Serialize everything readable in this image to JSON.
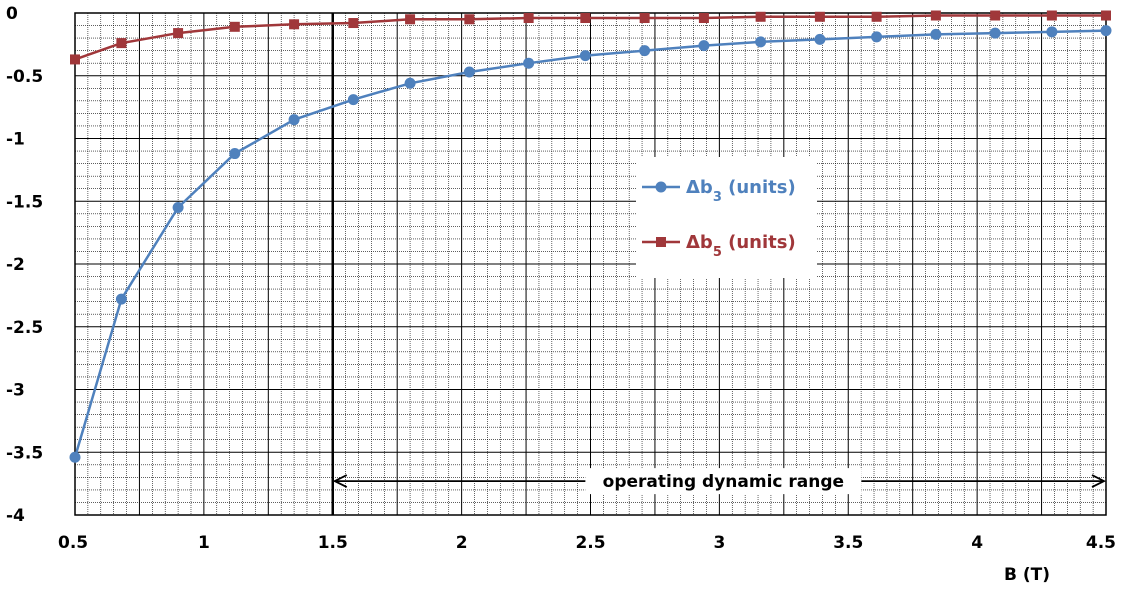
{
  "chart_data": {
    "type": "line",
    "xlabel": "B (T)",
    "xlim": [
      0.5,
      4.5
    ],
    "ylim": [
      -4,
      0
    ],
    "x_ticks": [
      "0.5",
      "1",
      "1.5",
      "2",
      "2.5",
      "3",
      "3.5",
      "4",
      "4.5"
    ],
    "y_ticks": [
      "0",
      "-0.5",
      "-1",
      "-1.5",
      "-2",
      "-2.5",
      "-3",
      "-3.5",
      "-4"
    ],
    "grid": true,
    "legend_position": "center-right",
    "series": [
      {
        "name_main": "Δb",
        "name_sub": "3",
        "name_rest": " (units)",
        "color": "#4f81bd",
        "marker": "circle",
        "x": [
          0.5,
          0.68,
          0.9,
          1.12,
          1.35,
          1.58,
          1.8,
          2.03,
          2.26,
          2.48,
          2.71,
          2.94,
          3.16,
          3.39,
          3.61,
          3.84,
          4.07,
          4.29,
          4.5
        ],
        "y": [
          -3.54,
          -2.28,
          -1.55,
          -1.12,
          -0.85,
          -0.69,
          -0.56,
          -0.47,
          -0.4,
          -0.34,
          -0.3,
          -0.26,
          -0.23,
          -0.21,
          -0.19,
          -0.17,
          -0.16,
          -0.15,
          -0.14
        ]
      },
      {
        "name_main": "Δb",
        "name_sub": "5",
        "name_rest": " (units)",
        "color": "#a0373a",
        "marker": "square",
        "x": [
          0.5,
          0.68,
          0.9,
          1.12,
          1.35,
          1.58,
          1.8,
          2.03,
          2.26,
          2.48,
          2.71,
          2.94,
          3.16,
          3.39,
          3.61,
          3.84,
          4.07,
          4.29,
          4.5
        ],
        "y": [
          -0.37,
          -0.24,
          -0.16,
          -0.11,
          -0.09,
          -0.08,
          -0.05,
          -0.05,
          -0.04,
          -0.04,
          -0.04,
          -0.04,
          -0.03,
          -0.03,
          -0.03,
          -0.02,
          -0.02,
          -0.02,
          -0.02
        ]
      }
    ],
    "annotation": {
      "text": "operating dynamic range",
      "x_start": 1.5,
      "x_end": 4.5,
      "y": -3.73
    },
    "reference_line_x": 1.5
  }
}
